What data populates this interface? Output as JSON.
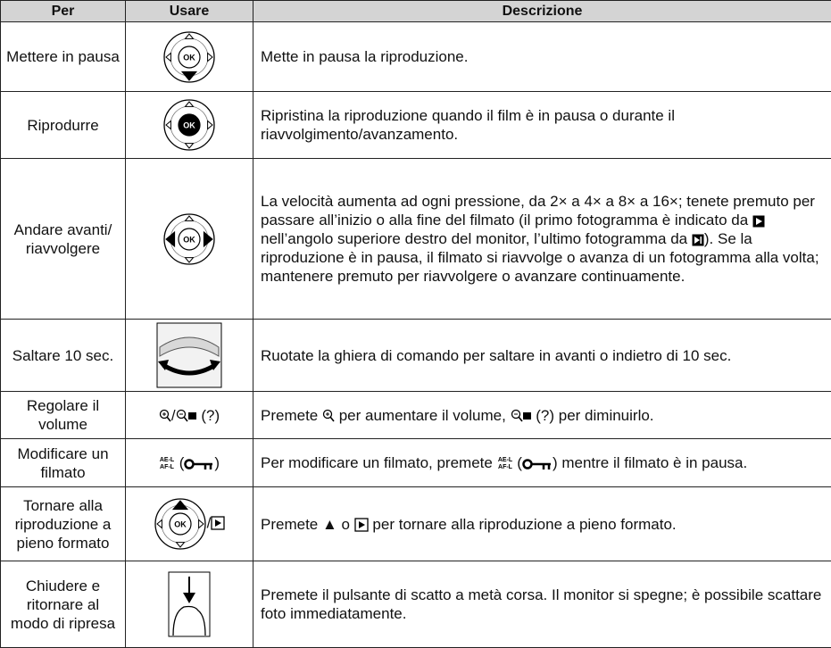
{
  "header": {
    "columns": [
      "Per",
      "Usare",
      "Descrizione"
    ]
  },
  "symbols": {
    "ok": "OK",
    "ael_top": "AE-L",
    "ael_bottom": "AF-L"
  },
  "table": {
    "rows": [
      {
        "per": "Mettere in pausa",
        "usare": [],
        "descrizione": [
          "Mette in pausa la riproduzione."
        ]
      },
      {
        "per": "Riprodurre",
        "usare": [],
        "descrizione": [
          "Ripristina la riproduzione quando il film è in pausa o durante il riavvolgimento/avanzamento."
        ]
      },
      {
        "per": "Andare avanti/ riavvolgere",
        "usare": [],
        "descrizione": [
          "La velocità aumenta ad ogni pressione, da 2× a 4× a 8× a 16×; tenete premuto per passare all’inizio o alla fine del filmato (il primo fotogramma è indicato da ",
          " nell’angolo superiore destro del monitor, l’ultimo fotogramma da ",
          ").  Se la riproduzione è in pausa, il filmato si riavvolge o avanza di un fotogramma alla volta; mantenere premuto per riavvolgere o avanzare continuamente."
        ]
      },
      {
        "per": "Saltare 10 sec.",
        "usare": [],
        "descrizione": [
          "Ruotate la ghiera di comando per saltare in avanti o indietro di 10 sec."
        ]
      },
      {
        "per": "Regolare il volume",
        "usare": [
          "/",
          " (?)"
        ],
        "descrizione": [
          "Premete ",
          " per aumentare il volume, ",
          " (?) per diminuirlo."
        ]
      },
      {
        "per": "Modificare un filmato",
        "usare": [
          " (",
          ")"
        ],
        "descrizione": [
          "Per modificare un filmato, premete ",
          " (",
          ") mentre il filmato è in pausa."
        ]
      },
      {
        "per": "Tornare alla riproduzione a pieno formato",
        "usare": [
          "/"
        ],
        "descrizione": [
          "Premete ▲ o ",
          " per tornare alla riproduzione a pieno formato."
        ]
      },
      {
        "per": "Chiudere e ritornare al modo di ripresa",
        "usare": [],
        "descrizione": [
          "Premete il pulsante di scatto a metà corsa.  Il monitor si spegne; è possibile scattare foto immediatamente."
        ]
      }
    ]
  }
}
